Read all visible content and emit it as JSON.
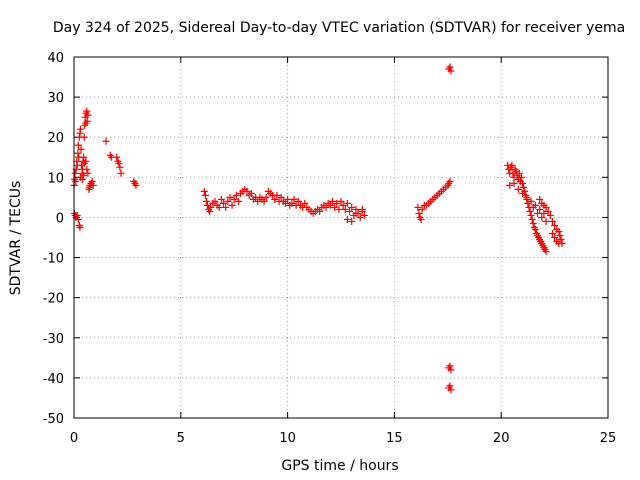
{
  "chart_data": {
    "type": "scatter",
    "title": "Day 324 of 2025, Sidereal Day-to-day VTEC variation (SDTVAR) for receiver yema",
    "xlabel": "GPS time / hours",
    "ylabel": "SDTVAR / TECUs",
    "xlim": [
      0,
      25
    ],
    "ylim": [
      -50,
      40
    ],
    "xticks": [
      0,
      5,
      10,
      15,
      20,
      25
    ],
    "yticks": [
      -50,
      -40,
      -30,
      -20,
      -10,
      0,
      10,
      20,
      30,
      40
    ],
    "grid": true,
    "marker": "+",
    "color": "#ff0000",
    "series": [
      {
        "name": "SDTVAR",
        "points": [
          [
            0.0,
            8.0
          ],
          [
            0.03,
            9.5
          ],
          [
            0.05,
            11.0
          ],
          [
            0.08,
            9.0
          ],
          [
            0.1,
            12.0
          ],
          [
            0.13,
            14.0
          ],
          [
            0.15,
            13.0
          ],
          [
            0.18,
            16.0
          ],
          [
            0.2,
            18.0
          ],
          [
            0.22,
            15.0
          ],
          [
            0.25,
            20.0
          ],
          [
            0.28,
            21.0
          ],
          [
            0.3,
            22.0
          ],
          [
            0.33,
            17.0
          ],
          [
            0.35,
            13.0
          ],
          [
            0.38,
            11.0
          ],
          [
            0.4,
            12.0
          ],
          [
            0.42,
            14.0
          ],
          [
            0.45,
            15.0
          ],
          [
            0.48,
            20.0
          ],
          [
            0.5,
            23.0
          ],
          [
            0.52,
            25.0
          ],
          [
            0.55,
            23.5
          ],
          [
            0.57,
            26.0
          ],
          [
            0.6,
            26.5
          ],
          [
            0.62,
            24.0
          ],
          [
            0.65,
            25.5
          ],
          [
            0.55,
            14.0
          ],
          [
            0.6,
            12.0
          ],
          [
            0.65,
            11.0
          ],
          [
            0.5,
            13.5
          ],
          [
            0.45,
            10.5
          ],
          [
            0.4,
            9.5
          ],
          [
            0.3,
            10.0
          ],
          [
            0.02,
            1.0
          ],
          [
            0.06,
            0.5
          ],
          [
            0.1,
            0.0
          ],
          [
            0.15,
            0.5
          ],
          [
            0.2,
            -0.5
          ],
          [
            0.25,
            -2.0
          ],
          [
            0.28,
            -2.5
          ],
          [
            0.7,
            7.0
          ],
          [
            0.75,
            8.0
          ],
          [
            0.8,
            8.5
          ],
          [
            0.85,
            9.0
          ],
          [
            0.9,
            8.0
          ],
          [
            0.72,
            7.5
          ],
          [
            1.5,
            19.0
          ],
          [
            1.7,
            15.5
          ],
          [
            1.75,
            15.0
          ],
          [
            2.0,
            15.0
          ],
          [
            2.05,
            14.0
          ],
          [
            2.1,
            13.5
          ],
          [
            2.15,
            12.5
          ],
          [
            2.2,
            11.0
          ],
          [
            2.8,
            9.0
          ],
          [
            2.85,
            8.5
          ],
          [
            2.9,
            8.0
          ],
          [
            6.1,
            6.5
          ],
          [
            6.15,
            5.5
          ],
          [
            6.2,
            4.0
          ],
          [
            6.25,
            3.0
          ],
          [
            6.3,
            2.0
          ],
          [
            6.35,
            1.5
          ],
          [
            6.4,
            2.5
          ],
          [
            6.5,
            3.5
          ],
          [
            6.6,
            4.0
          ],
          [
            6.7,
            3.0
          ],
          [
            6.8,
            2.5
          ],
          [
            6.9,
            4.5
          ],
          [
            7.0,
            3.5
          ],
          [
            7.1,
            2.5
          ],
          [
            7.2,
            4.0
          ],
          [
            7.3,
            5.0
          ],
          [
            7.4,
            3.0
          ],
          [
            7.5,
            4.5
          ],
          [
            7.6,
            5.5
          ],
          [
            7.7,
            4.0
          ],
          [
            7.8,
            6.0
          ],
          [
            7.9,
            6.5
          ],
          [
            8.0,
            7.0
          ],
          [
            8.1,
            6.5
          ],
          [
            8.2,
            5.5
          ],
          [
            8.3,
            6.0
          ],
          [
            8.4,
            4.5
          ],
          [
            8.5,
            5.0
          ],
          [
            8.6,
            4.0
          ],
          [
            8.7,
            5.0
          ],
          [
            8.8,
            4.5
          ],
          [
            8.9,
            4.0
          ],
          [
            9.0,
            5.0
          ],
          [
            9.1,
            6.5
          ],
          [
            9.2,
            6.0
          ],
          [
            9.3,
            5.5
          ],
          [
            9.4,
            4.5
          ],
          [
            9.5,
            5.5
          ],
          [
            9.6,
            4.0
          ],
          [
            9.7,
            5.0
          ],
          [
            9.8,
            4.0
          ],
          [
            9.9,
            3.5
          ],
          [
            10.0,
            4.5
          ],
          [
            10.1,
            3.0
          ],
          [
            10.2,
            3.5
          ],
          [
            10.3,
            4.5
          ],
          [
            10.4,
            3.0
          ],
          [
            10.5,
            4.0
          ],
          [
            10.6,
            3.0
          ],
          [
            10.7,
            2.5
          ],
          [
            10.8,
            3.5
          ],
          [
            10.9,
            2.5
          ],
          [
            11.0,
            2.0
          ],
          [
            11.1,
            1.5
          ],
          [
            11.2,
            1.0
          ],
          [
            11.3,
            1.5
          ],
          [
            11.4,
            2.0
          ],
          [
            11.5,
            1.5
          ],
          [
            11.6,
            2.5
          ],
          [
            11.7,
            3.0
          ],
          [
            11.8,
            2.5
          ],
          [
            11.9,
            3.5
          ],
          [
            12.0,
            3.0
          ],
          [
            12.1,
            4.0
          ],
          [
            12.2,
            2.5
          ],
          [
            12.3,
            3.5
          ],
          [
            12.4,
            2.0
          ],
          [
            12.5,
            4.0
          ],
          [
            12.6,
            3.0
          ],
          [
            12.7,
            2.0
          ],
          [
            12.8,
            3.5
          ],
          [
            12.9,
            1.5
          ],
          [
            13.0,
            2.5
          ],
          [
            13.1,
            0.5
          ],
          [
            13.2,
            2.0
          ],
          [
            13.3,
            1.0
          ],
          [
            13.4,
            0.0
          ],
          [
            13.5,
            1.5
          ],
          [
            13.6,
            0.5
          ],
          [
            13.0,
            -1.0
          ],
          [
            12.8,
            -0.5
          ],
          [
            13.2,
            1.0
          ],
          [
            13.5,
            2.0
          ],
          [
            16.1,
            2.5
          ],
          [
            16.15,
            1.0
          ],
          [
            16.2,
            0.0
          ],
          [
            16.25,
            -0.5
          ],
          [
            16.3,
            2.0
          ],
          [
            16.4,
            3.0
          ],
          [
            16.5,
            3.0
          ],
          [
            16.6,
            3.5
          ],
          [
            16.7,
            4.0
          ],
          [
            16.8,
            4.5
          ],
          [
            16.9,
            5.0
          ],
          [
            17.0,
            5.5
          ],
          [
            17.1,
            6.0
          ],
          [
            17.2,
            6.5
          ],
          [
            17.3,
            7.0
          ],
          [
            17.4,
            7.5
          ],
          [
            17.5,
            8.0
          ],
          [
            17.55,
            8.5
          ],
          [
            17.6,
            9.0
          ],
          [
            17.6,
            37.5
          ],
          [
            17.65,
            36.5
          ],
          [
            17.55,
            37.0
          ],
          [
            17.6,
            -37.0
          ],
          [
            17.65,
            -38.0
          ],
          [
            17.55,
            -37.5
          ],
          [
            17.6,
            -42.0
          ],
          [
            17.65,
            -43.0
          ],
          [
            17.55,
            -42.5
          ],
          [
            20.3,
            13.0
          ],
          [
            20.35,
            12.0
          ],
          [
            20.4,
            11.0
          ],
          [
            20.45,
            12.5
          ],
          [
            20.5,
            13.0
          ],
          [
            20.55,
            11.0
          ],
          [
            20.6,
            10.0
          ],
          [
            20.65,
            12.0
          ],
          [
            20.7,
            11.5
          ],
          [
            20.75,
            10.5
          ],
          [
            20.8,
            9.5
          ],
          [
            20.85,
            11.0
          ],
          [
            20.9,
            9.0
          ],
          [
            20.95,
            10.0
          ],
          [
            21.0,
            8.5
          ],
          [
            21.05,
            7.5
          ],
          [
            21.1,
            6.5
          ],
          [
            21.15,
            5.5
          ],
          [
            21.2,
            4.5
          ],
          [
            21.25,
            3.5
          ],
          [
            21.3,
            2.5
          ],
          [
            21.35,
            1.5
          ],
          [
            21.4,
            0.5
          ],
          [
            21.45,
            -0.5
          ],
          [
            21.5,
            -1.5
          ],
          [
            21.55,
            -2.5
          ],
          [
            21.6,
            -3.0
          ],
          [
            21.65,
            -4.0
          ],
          [
            21.7,
            -4.5
          ],
          [
            21.75,
            -5.0
          ],
          [
            21.8,
            -5.5
          ],
          [
            21.85,
            -6.0
          ],
          [
            21.9,
            -6.5
          ],
          [
            21.95,
            -7.0
          ],
          [
            22.0,
            -7.5
          ],
          [
            22.05,
            -8.0
          ],
          [
            22.1,
            -8.5
          ],
          [
            20.4,
            8.0
          ],
          [
            20.6,
            8.5
          ],
          [
            20.8,
            7.0
          ],
          [
            21.0,
            6.0
          ],
          [
            21.2,
            5.0
          ],
          [
            21.4,
            4.0
          ],
          [
            21.6,
            3.0
          ],
          [
            21.8,
            2.0
          ],
          [
            22.0,
            1.0
          ],
          [
            21.5,
            2.5
          ],
          [
            21.7,
            1.0
          ],
          [
            21.9,
            0.0
          ],
          [
            22.1,
            -1.0
          ],
          [
            21.8,
            4.5
          ],
          [
            21.9,
            3.5
          ],
          [
            22.0,
            3.0
          ],
          [
            22.1,
            2.5
          ],
          [
            22.2,
            1.5
          ],
          [
            22.3,
            0.5
          ],
          [
            22.4,
            -1.0
          ],
          [
            22.5,
            -2.0
          ],
          [
            22.6,
            -3.0
          ],
          [
            22.7,
            -3.5
          ],
          [
            22.75,
            -4.5
          ],
          [
            22.8,
            -5.5
          ],
          [
            22.85,
            -6.5
          ],
          [
            22.5,
            -5.0
          ],
          [
            22.6,
            -6.0
          ],
          [
            22.7,
            -6.5
          ],
          [
            22.4,
            -4.0
          ]
        ]
      }
    ]
  }
}
